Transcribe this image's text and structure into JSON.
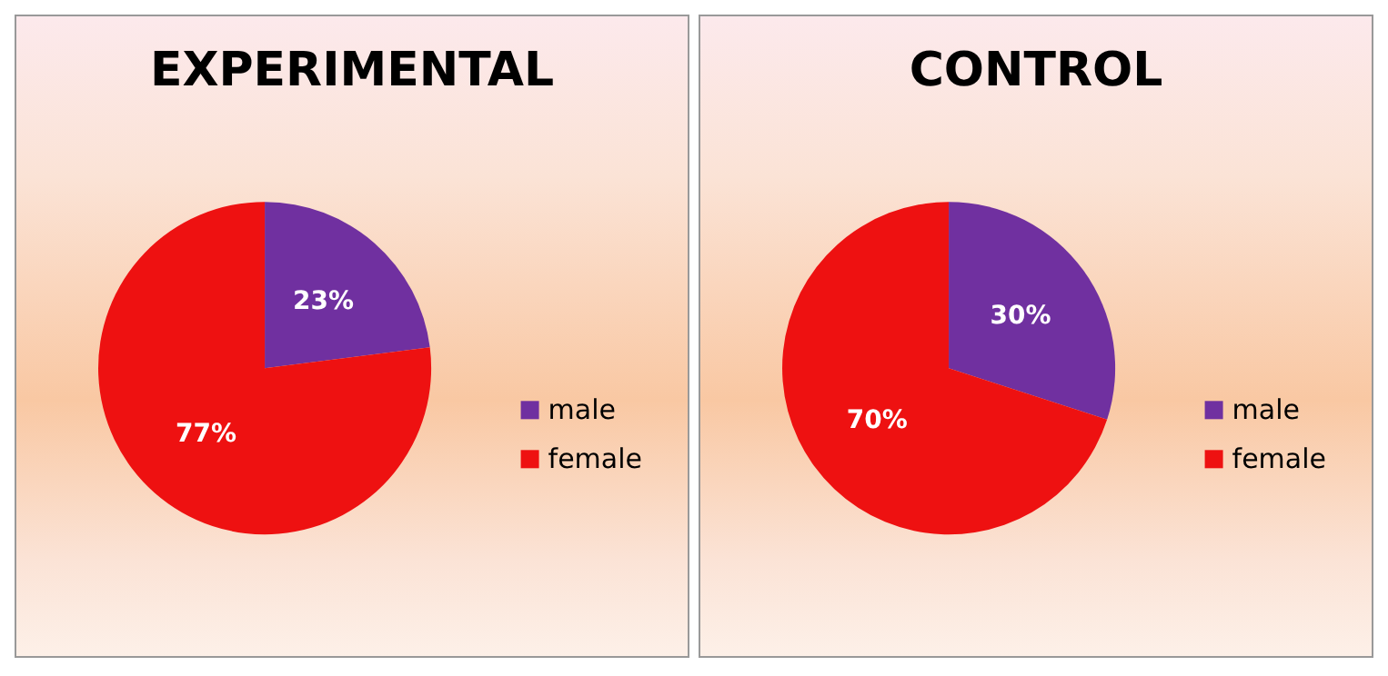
{
  "chart_data": [
    {
      "type": "pie",
      "title": "EXPERIMENTAL",
      "categories": [
        "male",
        "female"
      ],
      "values": [
        23,
        77
      ],
      "colors": [
        "#7030a0",
        "#ee1111"
      ],
      "value_labels": [
        "23%",
        "77%"
      ],
      "legend": "right"
    },
    {
      "type": "pie",
      "title": "CONTROL",
      "categories": [
        "male",
        "female"
      ],
      "values": [
        30,
        70
      ],
      "colors": [
        "#7030a0",
        "#ee1111"
      ],
      "value_labels": [
        "30%",
        "70%"
      ],
      "legend": "right"
    }
  ]
}
